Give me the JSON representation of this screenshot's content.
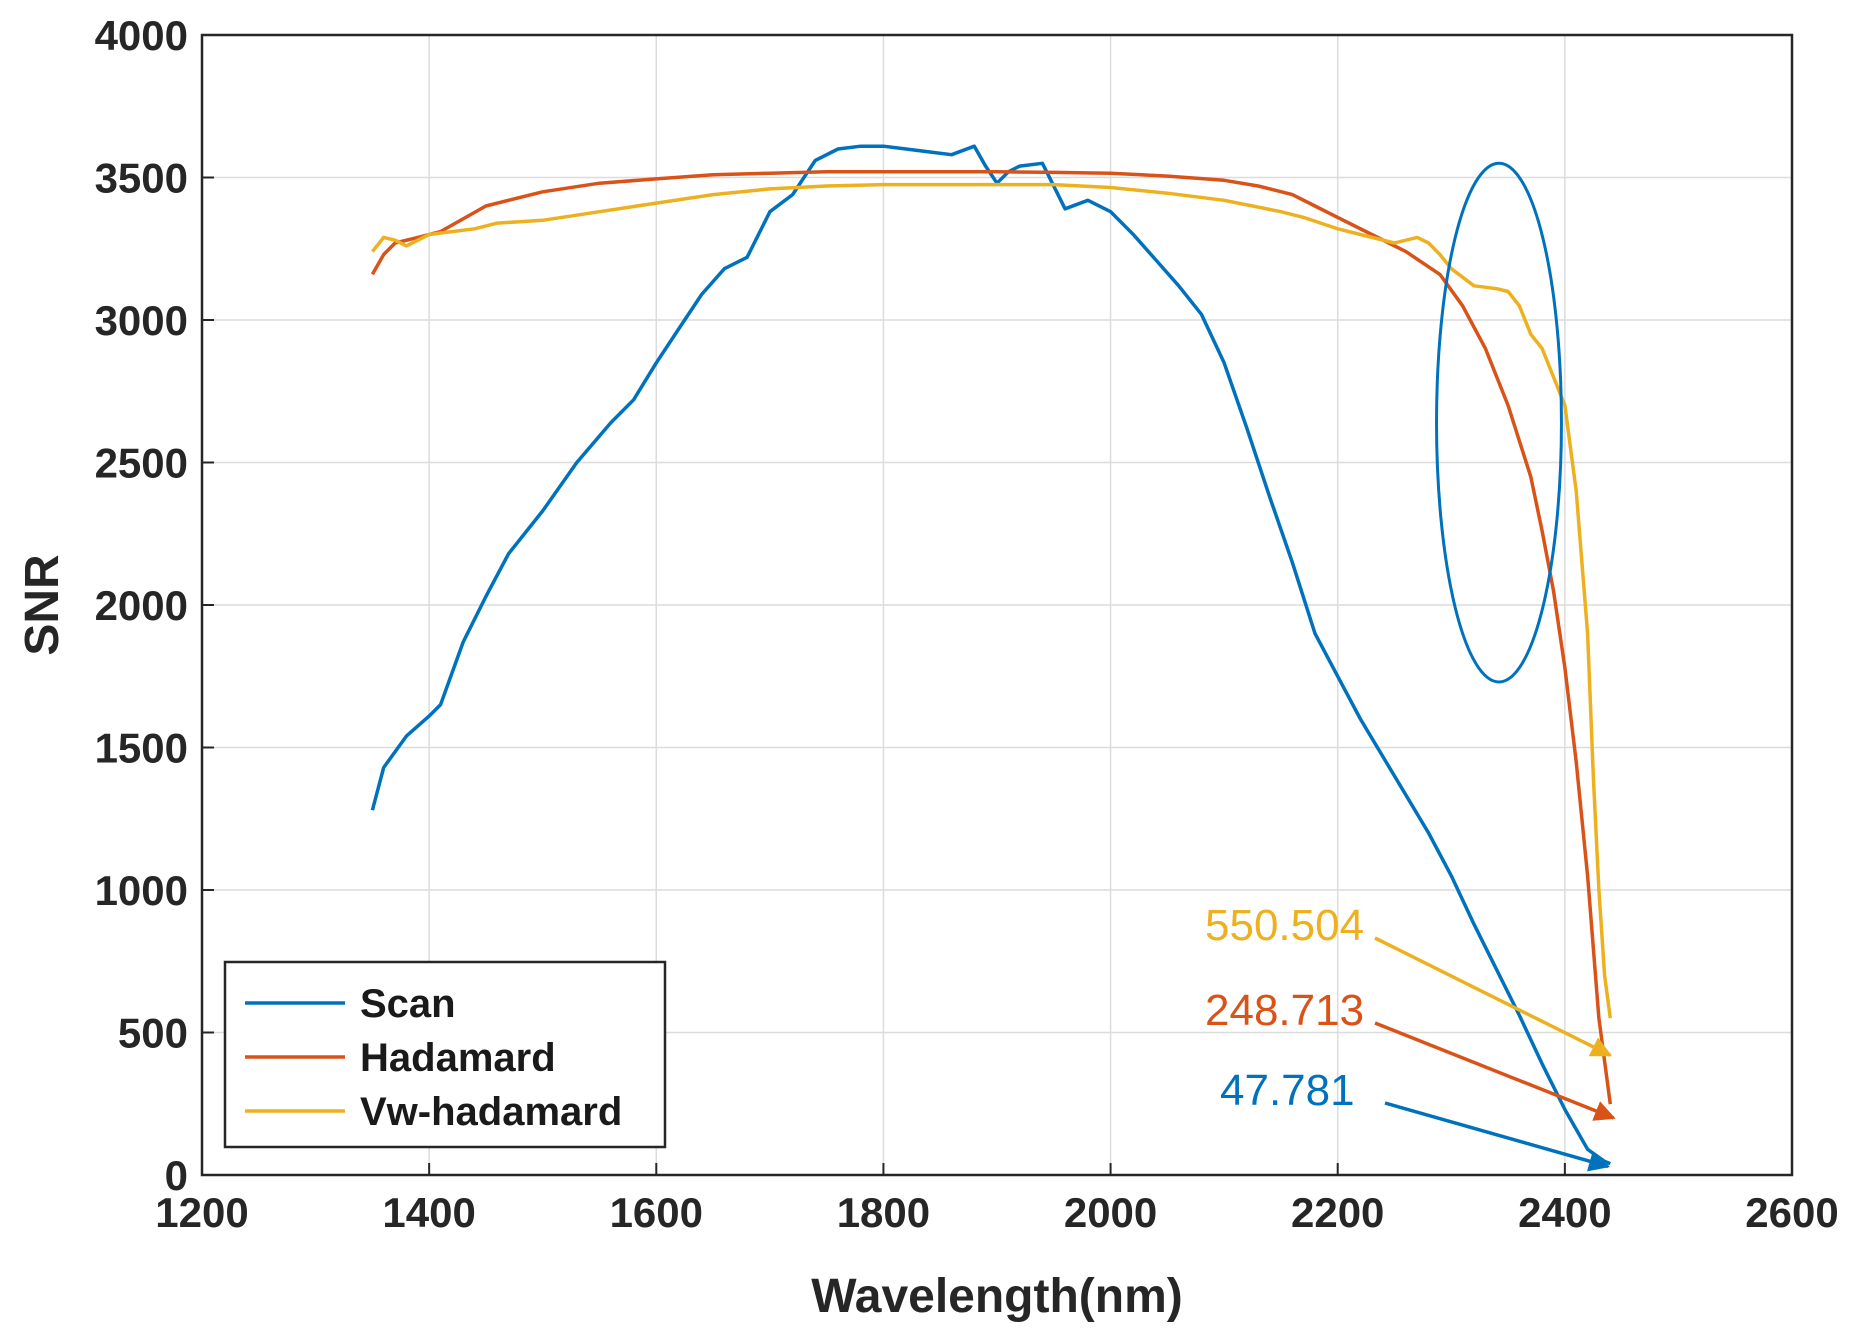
{
  "chart_data": {
    "type": "line",
    "title": "",
    "xlabel": "Wavelength(nm)",
    "ylabel": "SNR",
    "xlim": [
      1200,
      2600
    ],
    "ylim": [
      0,
      4000
    ],
    "xticks": [
      1200,
      1400,
      1600,
      1800,
      2000,
      2200,
      2400,
      2600
    ],
    "yticks": [
      0,
      500,
      1000,
      1500,
      2000,
      2500,
      3000,
      3500,
      4000
    ],
    "xtick_labels": [
      "1200",
      "1400",
      "1600",
      "1800",
      "2000",
      "2200",
      "2400",
      "2600"
    ],
    "ytick_labels": [
      "0",
      "500",
      "1000",
      "1500",
      "2000",
      "2500",
      "3000",
      "3500",
      "4000"
    ],
    "grid": true,
    "legend_position": "bottom-left",
    "series": [
      {
        "name": "Scan",
        "color": "#0072BD",
        "x": [
          1350,
          1360,
          1380,
          1400,
          1410,
          1430,
          1450,
          1470,
          1500,
          1530,
          1560,
          1580,
          1600,
          1620,
          1640,
          1660,
          1680,
          1700,
          1720,
          1740,
          1760,
          1780,
          1800,
          1820,
          1840,
          1860,
          1880,
          1890,
          1900,
          1910,
          1920,
          1940,
          1960,
          1980,
          2000,
          2020,
          2040,
          2060,
          2080,
          2100,
          2120,
          2140,
          2160,
          2180,
          2200,
          2220,
          2250,
          2280,
          2300,
          2320,
          2340,
          2360,
          2380,
          2400,
          2420,
          2435,
          2440
        ],
        "y": [
          1280,
          1430,
          1540,
          1610,
          1650,
          1870,
          2030,
          2180,
          2330,
          2500,
          2640,
          2720,
          2850,
          2970,
          3090,
          3180,
          3220,
          3380,
          3440,
          3560,
          3600,
          3610,
          3610,
          3600,
          3590,
          3580,
          3610,
          3540,
          3480,
          3520,
          3540,
          3550,
          3390,
          3420,
          3380,
          3300,
          3210,
          3120,
          3020,
          2850,
          2620,
          2380,
          2150,
          1900,
          1750,
          1600,
          1400,
          1200,
          1050,
          880,
          720,
          560,
          390,
          230,
          90,
          47.781,
          40
        ]
      },
      {
        "name": "Hadamard",
        "color": "#D95319",
        "x": [
          1350,
          1360,
          1370,
          1390,
          1410,
          1450,
          1500,
          1550,
          1600,
          1650,
          1700,
          1750,
          1800,
          1850,
          1900,
          1950,
          2000,
          2050,
          2100,
          2130,
          2160,
          2180,
          2200,
          2230,
          2260,
          2290,
          2310,
          2330,
          2350,
          2370,
          2380,
          2390,
          2400,
          2410,
          2420,
          2430,
          2440
        ],
        "y": [
          3160,
          3230,
          3270,
          3290,
          3310,
          3400,
          3450,
          3480,
          3495,
          3510,
          3515,
          3520,
          3520,
          3520,
          3520,
          3518,
          3515,
          3505,
          3490,
          3470,
          3440,
          3400,
          3360,
          3300,
          3240,
          3160,
          3050,
          2900,
          2700,
          2450,
          2260,
          2050,
          1780,
          1450,
          1050,
          550,
          248.713
        ]
      },
      {
        "name": "Vw-hadamard",
        "color": "#EDB120",
        "x": [
          1350,
          1360,
          1370,
          1380,
          1400,
          1420,
          1440,
          1460,
          1480,
          1500,
          1550,
          1600,
          1650,
          1700,
          1750,
          1800,
          1850,
          1900,
          1950,
          2000,
          2050,
          2100,
          2150,
          2170,
          2200,
          2220,
          2250,
          2270,
          2280,
          2290,
          2300,
          2320,
          2340,
          2350,
          2360,
          2370,
          2380,
          2390,
          2400,
          2410,
          2420,
          2425,
          2430,
          2435,
          2440
        ],
        "y": [
          3240,
          3290,
          3280,
          3260,
          3300,
          3310,
          3320,
          3340,
          3345,
          3350,
          3380,
          3410,
          3440,
          3460,
          3470,
          3475,
          3475,
          3475,
          3475,
          3465,
          3445,
          3420,
          3380,
          3360,
          3320,
          3300,
          3270,
          3290,
          3270,
          3230,
          3180,
          3120,
          3110,
          3100,
          3050,
          2950,
          2900,
          2800,
          2700,
          2400,
          1900,
          1400,
          1000,
          700,
          550.504
        ]
      }
    ],
    "ellipse_highlight": {
      "center": [
        2342,
        2640
      ],
      "rx_data": 55,
      "ry_data": 910,
      "color": "#0072BD"
    },
    "annotations": [
      {
        "text": "550.504",
        "color": "#EDB120",
        "target": [
          2440,
          420
        ]
      },
      {
        "text": "248.713",
        "color": "#D95319",
        "target": [
          2443,
          200
        ]
      },
      {
        "text": "47.781",
        "color": "#0072BD",
        "target": [
          2438,
          30
        ]
      }
    ]
  }
}
